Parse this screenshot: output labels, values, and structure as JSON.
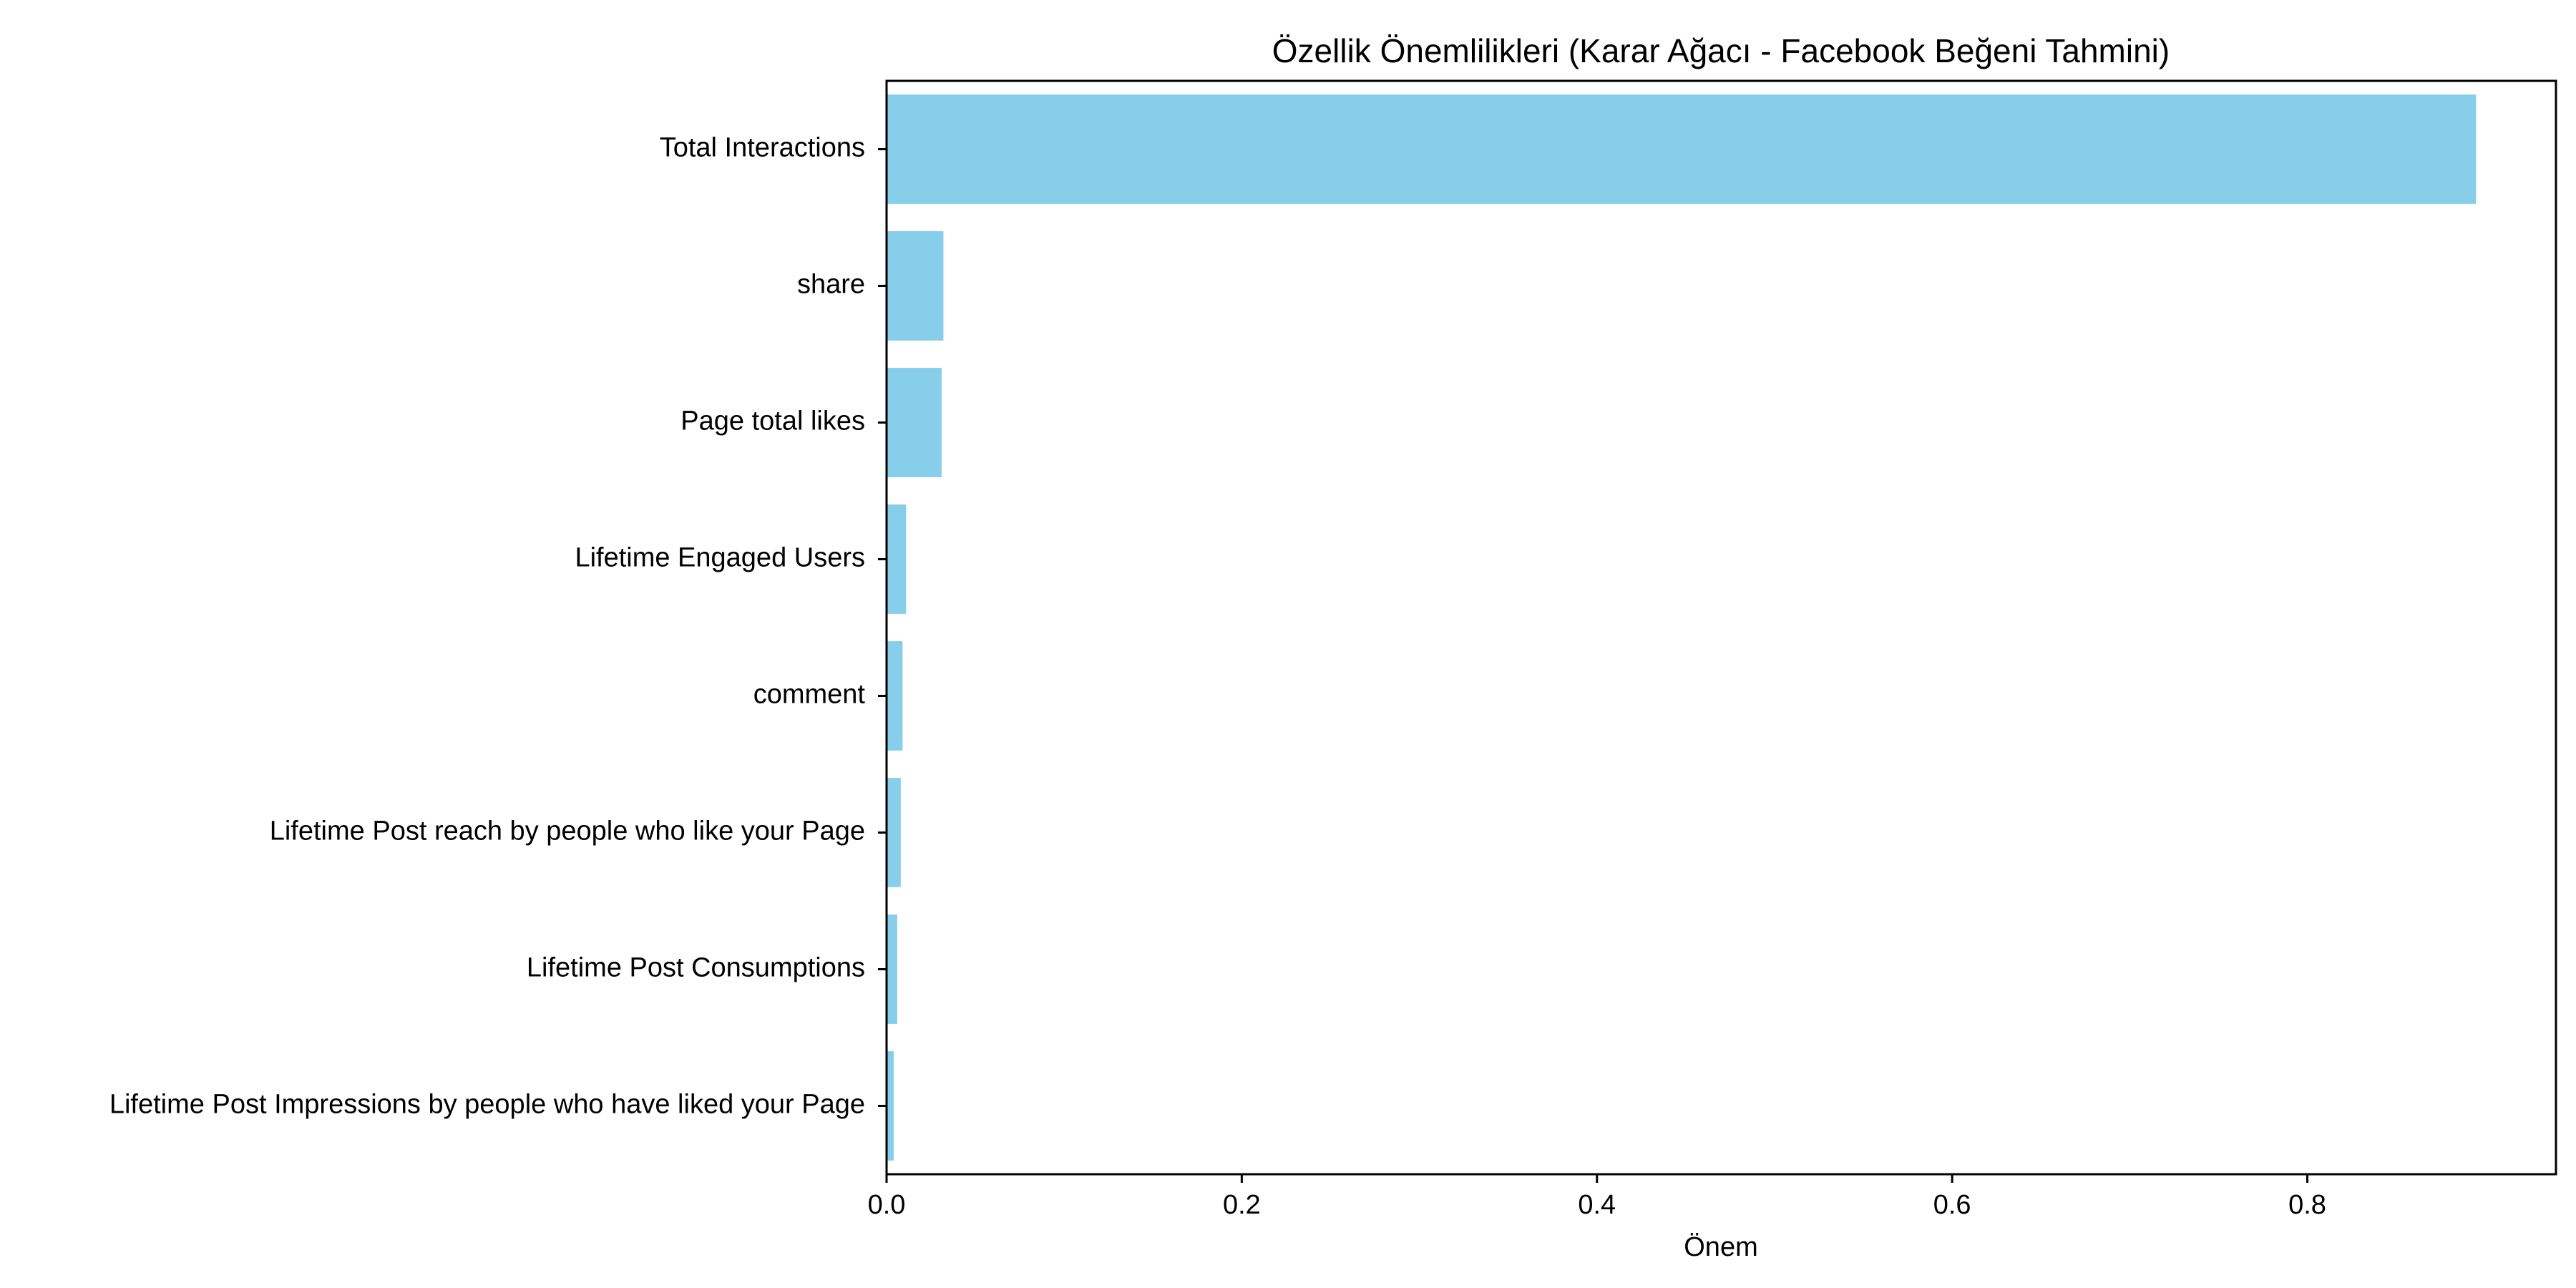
{
  "chart_data": {
    "type": "bar",
    "orientation": "horizontal",
    "title": "Özellik Önemlilikleri (Karar Ağacı - Facebook Beğeni Tahmini)",
    "xlabel": "Önem",
    "ylabel": "",
    "xlim": [
      0.0,
      0.94
    ],
    "xticks": [
      0.0,
      0.2,
      0.4,
      0.6,
      0.8
    ],
    "xtick_labels": [
      "0.0",
      "0.2",
      "0.4",
      "0.6",
      "0.8"
    ],
    "categories": [
      "Total Interactions",
      "share",
      "Page total likes",
      "Lifetime Engaged Users",
      "comment",
      "Lifetime Post reach by people who like your Page",
      "Lifetime Post Consumptions",
      "Lifetime Post Impressions by people who have liked your Page"
    ],
    "values": [
      0.895,
      0.032,
      0.031,
      0.011,
      0.009,
      0.008,
      0.006,
      0.004
    ],
    "bar_color": "#87CEEB",
    "grid": false,
    "legend": "none"
  }
}
